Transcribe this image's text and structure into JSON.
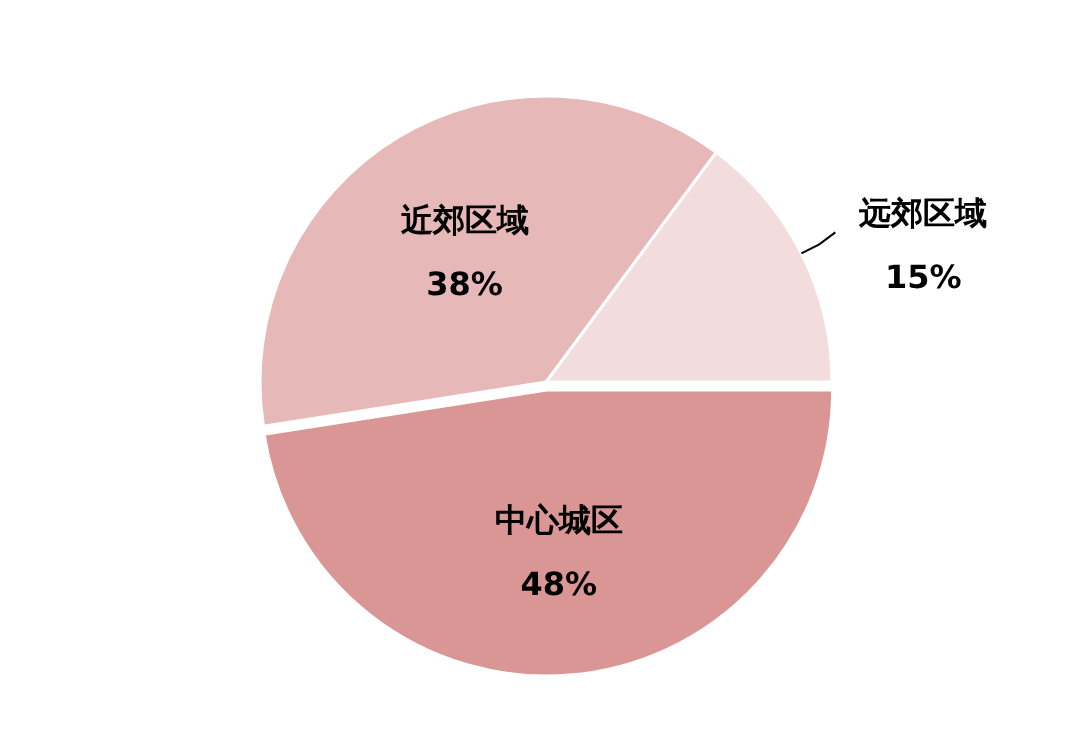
{
  "chart_data": {
    "type": "pie",
    "categories": [
      "远郊区域",
      "近郊区域",
      "中心城区"
    ],
    "values": [
      15,
      38,
      48
    ],
    "colors": [
      "#f2dcdc",
      "#e6b8b7",
      "#d99694"
    ],
    "value_labels": [
      "15%",
      "38%",
      "48%"
    ]
  }
}
